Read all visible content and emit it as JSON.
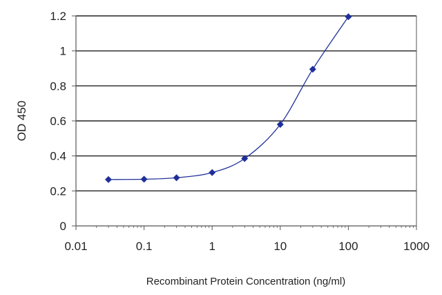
{
  "colors": {
    "series": "#1f2f99",
    "grid": "#222222",
    "axis": "#555555",
    "text": "#222222"
  },
  "chart_data": {
    "type": "scatter",
    "title": "",
    "xlabel": "Recombinant Protein Concentration (ng/ml)",
    "ylabel": "OD 450",
    "x_scale": "log",
    "xlim": [
      0.01,
      1000
    ],
    "ylim": [
      0,
      1.2
    ],
    "x_ticks": [
      0.01,
      0.1,
      1,
      10,
      100,
      1000
    ],
    "x_tick_labels": [
      "0.01",
      "0.1",
      "1",
      "10",
      "100",
      "1000"
    ],
    "y_ticks": [
      0,
      0.2,
      0.4,
      0.6,
      0.8,
      1,
      1.2
    ],
    "y_tick_labels": [
      "0",
      "0.2",
      "0.4",
      "0.6",
      "0.8",
      "1",
      "1.2"
    ],
    "grid": "horizontal",
    "legend": "none",
    "series": [
      {
        "marker": "diamond",
        "line": "smooth fitted curve",
        "x": [
          0.03,
          0.1,
          0.3,
          1,
          3,
          10,
          30,
          100
        ],
        "y": [
          0.265,
          0.267,
          0.275,
          0.305,
          0.385,
          0.58,
          0.895,
          1.195
        ]
      }
    ]
  }
}
